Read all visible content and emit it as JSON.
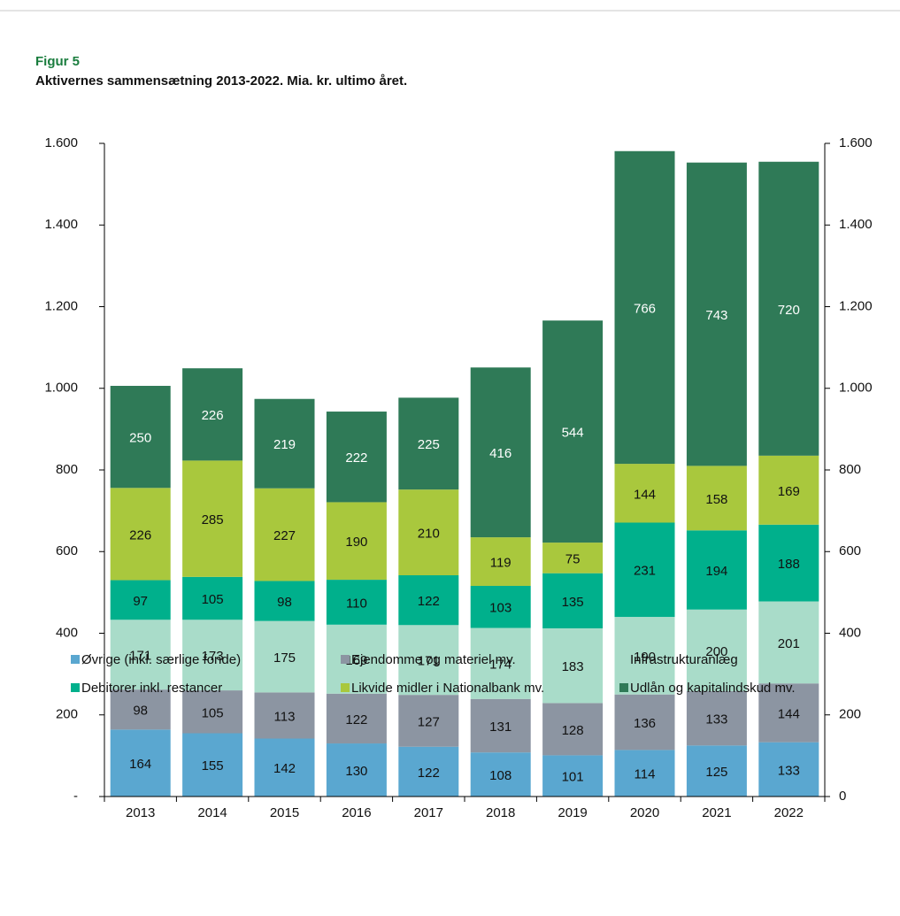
{
  "chart_data": {
    "type": "stacked_bar",
    "figure_label": "Figur 5",
    "title": "Aktivernes sammensætning 2013-2022. Mia. kr. ultimo året.",
    "categories": [
      "2013",
      "2014",
      "2015",
      "2016",
      "2017",
      "2018",
      "2019",
      "2020",
      "2021",
      "2022"
    ],
    "series": [
      {
        "name": "Øvrige (inkl. særlige fonde)",
        "color": "#5aa7d0",
        "label_color": "#111111",
        "values": [
          164,
          155,
          142,
          130,
          122,
          108,
          101,
          114,
          125,
          133
        ]
      },
      {
        "name": "Ejendomme og materiel mv.",
        "color": "#8c95a2",
        "label_color": "#111111",
        "values": [
          98,
          105,
          113,
          122,
          127,
          131,
          128,
          136,
          133,
          144
        ]
      },
      {
        "name": "Infrastrukturanlæg",
        "color": "#a9dcc9",
        "label_color": "#111111",
        "values": [
          171,
          173,
          175,
          169,
          171,
          174,
          183,
          190,
          200,
          201
        ]
      },
      {
        "name": "Debitorer inkl. restancer",
        "color": "#00b08c",
        "label_color": "#111111",
        "values": [
          97,
          105,
          98,
          110,
          122,
          103,
          135,
          231,
          194,
          188
        ]
      },
      {
        "name": "Likvide midler i Nationalbank mv.",
        "color": "#a9c83d",
        "label_color": "#111111",
        "values": [
          226,
          285,
          227,
          190,
          210,
          119,
          75,
          144,
          158,
          169
        ]
      },
      {
        "name": "Udlån og kapitalindskud mv.",
        "color": "#2f7a57",
        "label_color": "#ffffff",
        "values": [
          250,
          226,
          219,
          222,
          225,
          416,
          544,
          766,
          743,
          720
        ]
      }
    ],
    "ylim": [
      0,
      1600
    ],
    "yticks": [
      {
        "value": 0,
        "label": "-"
      },
      200,
      400,
      600,
      800,
      {
        "value": 1000,
        "label": "1.000"
      },
      {
        "value": 1200,
        "label": "1.200"
      },
      {
        "value": 1400,
        "label": "1.400"
      },
      {
        "value": 1600,
        "label": "1.600"
      }
    ],
    "y2lim": [
      0,
      1600
    ],
    "y2ticks": [
      0,
      200,
      400,
      600,
      800,
      {
        "value": 1000,
        "label": "1.000"
      },
      {
        "value": 1200,
        "label": "1.200"
      },
      {
        "value": 1400,
        "label": "1.400"
      },
      {
        "value": 1600,
        "label": "1.600"
      }
    ],
    "grid": false
  }
}
